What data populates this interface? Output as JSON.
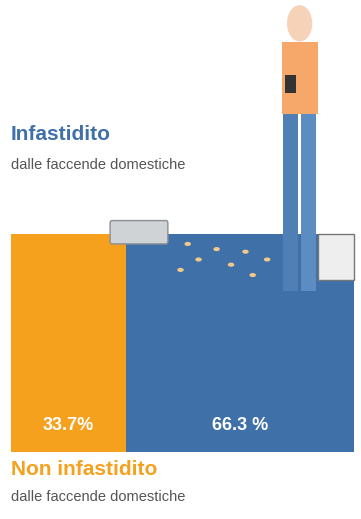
{
  "chart_data": {
    "type": "bar",
    "orientation": "horizontal",
    "stacked": true,
    "categories": [
      null
    ],
    "series": [
      {
        "name": "Non infastidito",
        "color": "#f5a11e",
        "values": [
          33.7
        ],
        "value_labels": [
          "33.7%"
        ]
      },
      {
        "name": "Infastidito",
        "color": "#3f70a8",
        "values": [
          66.3
        ],
        "value_labels": [
          "66.3 %"
        ]
      }
    ],
    "annotations": [
      "dalle faccende domestiche",
      "dalle faccende domestiche"
    ],
    "xlim": [
      0,
      100
    ],
    "data_labels": true,
    "tick_labels": false,
    "grid": false
  }
}
